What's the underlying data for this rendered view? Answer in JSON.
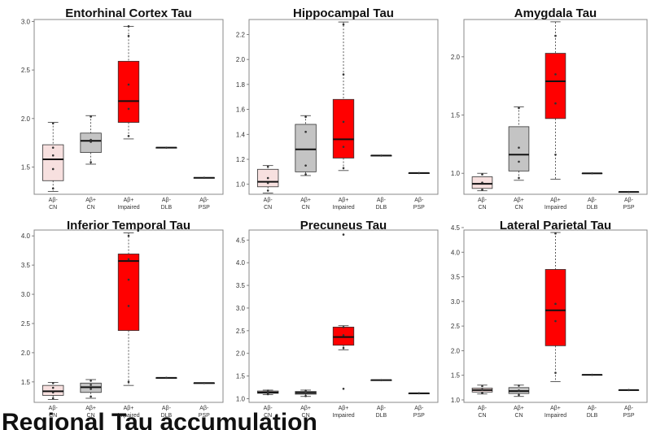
{
  "chart_data": [
    {
      "type": "box",
      "title": "Entorhinal Cortex Tau",
      "yticks": [
        "1.5",
        "2.0",
        "2.5",
        "3.0"
      ],
      "ylim": [
        1.22,
        3.02
      ],
      "categories": [
        [
          "Aβ-",
          "CN"
        ],
        [
          "Aβ+",
          "CN"
        ],
        [
          "Aβ+",
          "Impaired"
        ],
        [
          "Aβ-",
          "DLB"
        ],
        [
          "Aβ-",
          "PSP"
        ]
      ],
      "boxes": [
        {
          "min": 1.25,
          "q1": 1.36,
          "median": 1.58,
          "q3": 1.73,
          "max": 1.96,
          "points": [
            1.28,
            1.48,
            1.62,
            1.7,
            1.95
          ]
        },
        {
          "min": 1.53,
          "q1": 1.65,
          "median": 1.77,
          "q3": 1.85,
          "max": 2.03,
          "points": [
            1.55,
            1.76,
            1.78,
            2.02
          ]
        },
        {
          "min": 1.79,
          "q1": 1.96,
          "median": 2.18,
          "q3": 2.59,
          "max": 2.95,
          "points": [
            1.82,
            2.1,
            2.35,
            2.85,
            2.95
          ]
        },
        {
          "min": 1.7,
          "q1": 1.7,
          "median": 1.7,
          "q3": 1.7,
          "max": 1.7,
          "points": [
            1.7
          ]
        },
        {
          "min": 1.39,
          "q1": 1.39,
          "median": 1.39,
          "q3": 1.39,
          "max": 1.39,
          "points": [
            1.39
          ]
        }
      ]
    },
    {
      "type": "box",
      "title": "Hippocampal Tau",
      "yticks": [
        "1.0",
        "1.2",
        "1.4",
        "1.6",
        "1.8",
        "2.0",
        "2.2"
      ],
      "ylim": [
        0.92,
        2.32
      ],
      "categories": [
        [
          "Aβ-",
          "CN"
        ],
        [
          "Aβ+",
          "CN"
        ],
        [
          "Aβ+",
          "Impaired"
        ],
        [
          "Aβ-",
          "DLB"
        ],
        [
          "Aβ-",
          "PSP"
        ]
      ],
      "boxes": [
        {
          "min": 0.93,
          "q1": 0.98,
          "median": 1.02,
          "q3": 1.12,
          "max": 1.15,
          "points": [
            0.95,
            1.01,
            1.05,
            1.14
          ]
        },
        {
          "min": 1.07,
          "q1": 1.1,
          "median": 1.28,
          "q3": 1.48,
          "max": 1.55,
          "points": [
            1.08,
            1.15,
            1.42,
            1.54
          ]
        },
        {
          "min": 1.11,
          "q1": 1.21,
          "median": 1.36,
          "q3": 1.68,
          "max": 2.3,
          "points": [
            1.13,
            1.3,
            1.5,
            1.88,
            2.28
          ]
        },
        {
          "min": 1.23,
          "q1": 1.23,
          "median": 1.23,
          "q3": 1.23,
          "max": 1.23,
          "points": [
            1.23
          ]
        },
        {
          "min": 1.09,
          "q1": 1.09,
          "median": 1.09,
          "q3": 1.09,
          "max": 1.09,
          "points": [
            1.09
          ]
        }
      ]
    },
    {
      "type": "box",
      "title": "Amygdala Tau",
      "yticks": [
        "1.0",
        "1.5",
        "2.0"
      ],
      "ylim": [
        0.82,
        2.32
      ],
      "categories": [
        [
          "Aβ-",
          "CN"
        ],
        [
          "Aβ+",
          "CN"
        ],
        [
          "Aβ+",
          "Impaired"
        ],
        [
          "Aβ-",
          "DLB"
        ],
        [
          "Aβ-",
          "PSP"
        ]
      ],
      "boxes": [
        {
          "min": 0.85,
          "q1": 0.87,
          "median": 0.91,
          "q3": 0.97,
          "max": 1.0,
          "points": [
            0.86,
            0.92,
            0.99
          ]
        },
        {
          "min": 0.94,
          "q1": 1.02,
          "median": 1.16,
          "q3": 1.4,
          "max": 1.57,
          "points": [
            0.96,
            1.1,
            1.22,
            1.56
          ]
        },
        {
          "min": 0.95,
          "q1": 1.47,
          "median": 1.79,
          "q3": 2.03,
          "max": 2.3,
          "points": [
            1.16,
            1.6,
            1.85,
            2.18
          ]
        },
        {
          "min": 1.0,
          "q1": 1.0,
          "median": 1.0,
          "q3": 1.0,
          "max": 1.0,
          "points": [
            1.0
          ]
        },
        {
          "min": 0.84,
          "q1": 0.84,
          "median": 0.84,
          "q3": 0.84,
          "max": 0.84,
          "points": [
            0.84
          ]
        }
      ]
    },
    {
      "type": "box",
      "title": "Inferior Temporal Tau",
      "yticks": [
        "1.5",
        "2.0",
        "2.5",
        "3.0",
        "3.5",
        "4.0"
      ],
      "ylim": [
        1.15,
        4.1
      ],
      "categories": [
        [
          "Aβ-",
          "CN"
        ],
        [
          "Aβ+",
          "CN"
        ],
        [
          "Aβ+",
          "Impaired"
        ],
        [
          "Aβ-",
          "DLB"
        ],
        [
          "Aβ-",
          "PSP"
        ]
      ],
      "boxes": [
        {
          "min": 1.2,
          "q1": 1.27,
          "median": 1.34,
          "q3": 1.44,
          "max": 1.49,
          "points": [
            1.22,
            1.32,
            1.4,
            1.48
          ]
        },
        {
          "min": 1.22,
          "q1": 1.32,
          "median": 1.41,
          "q3": 1.48,
          "max": 1.54,
          "points": [
            1.25,
            1.38,
            1.45,
            1.52
          ]
        },
        {
          "min": 1.44,
          "q1": 2.38,
          "median": 3.57,
          "q3": 3.69,
          "max": 4.05,
          "points": [
            1.5,
            2.8,
            3.25,
            3.6,
            4.0
          ]
        },
        {
          "min": 1.57,
          "q1": 1.57,
          "median": 1.57,
          "q3": 1.57,
          "max": 1.57,
          "points": [
            1.57
          ]
        },
        {
          "min": 1.48,
          "q1": 1.48,
          "median": 1.48,
          "q3": 1.48,
          "max": 1.48,
          "points": [
            1.48
          ]
        }
      ]
    },
    {
      "type": "box",
      "title": "Precuneus Tau",
      "yticks": [
        "1.0",
        "1.5",
        "2.0",
        "2.5",
        "3.0",
        "3.5",
        "4.0",
        "4.5"
      ],
      "ylim": [
        0.92,
        4.72
      ],
      "categories": [
        [
          "Aβ-",
          "CN"
        ],
        [
          "Aβ+",
          "CN"
        ],
        [
          "Aβ+",
          "Impaired"
        ],
        [
          "Aβ-",
          "DLB"
        ],
        [
          "Aβ-",
          "PSP"
        ]
      ],
      "boxes": [
        {
          "min": 1.09,
          "q1": 1.12,
          "median": 1.14,
          "q3": 1.17,
          "max": 1.19,
          "points": [
            1.1,
            1.15,
            1.18
          ]
        },
        {
          "min": 1.05,
          "q1": 1.1,
          "median": 1.13,
          "q3": 1.16,
          "max": 1.19,
          "points": [
            1.06,
            1.12,
            1.18
          ]
        },
        {
          "min": 2.08,
          "q1": 2.18,
          "median": 2.36,
          "q3": 2.58,
          "max": 2.61,
          "points": [
            1.22,
            2.12,
            2.4,
            2.58,
            4.62
          ]
        },
        {
          "min": 1.41,
          "q1": 1.41,
          "median": 1.41,
          "q3": 1.41,
          "max": 1.41,
          "points": [
            1.41
          ]
        },
        {
          "min": 1.12,
          "q1": 1.12,
          "median": 1.12,
          "q3": 1.12,
          "max": 1.12,
          "points": [
            1.12
          ]
        }
      ]
    },
    {
      "type": "box",
      "title": "Lateral Parietal Tau",
      "yticks": [
        "1.0",
        "1.5",
        "2.0",
        "2.5",
        "3.0",
        "3.5",
        "4.0",
        "4.5"
      ],
      "ylim": [
        0.95,
        4.45
      ],
      "categories": [
        [
          "Aβ-",
          "CN"
        ],
        [
          "Aβ+",
          "CN"
        ],
        [
          "Aβ+",
          "Impaired"
        ],
        [
          "Aβ-",
          "DLB"
        ],
        [
          "Aβ-",
          "PSP"
        ]
      ],
      "boxes": [
        {
          "min": 1.12,
          "q1": 1.16,
          "median": 1.2,
          "q3": 1.24,
          "max": 1.3,
          "points": [
            1.14,
            1.21,
            1.28
          ]
        },
        {
          "min": 1.07,
          "q1": 1.13,
          "median": 1.18,
          "q3": 1.25,
          "max": 1.3,
          "points": [
            1.1,
            1.19,
            1.29
          ]
        },
        {
          "min": 1.37,
          "q1": 2.1,
          "median": 2.82,
          "q3": 3.65,
          "max": 4.4,
          "points": [
            1.55,
            2.6,
            2.95,
            4.38
          ]
        },
        {
          "min": 1.51,
          "q1": 1.51,
          "median": 1.51,
          "q3": 1.51,
          "max": 1.51,
          "points": [
            1.51
          ]
        },
        {
          "min": 1.2,
          "q1": 1.2,
          "median": 1.2,
          "q3": 1.2,
          "max": 1.2,
          "points": [
            1.2
          ]
        }
      ]
    }
  ],
  "colors": {
    "box_fills": [
      "#f7e0df",
      "#c4c4c4",
      "#ff0000",
      "#ffffff",
      "#ffffff"
    ],
    "box_stroke": "#333333",
    "frame": "#888888"
  },
  "footer": {
    "text": "Regional Tau accumulation"
  }
}
